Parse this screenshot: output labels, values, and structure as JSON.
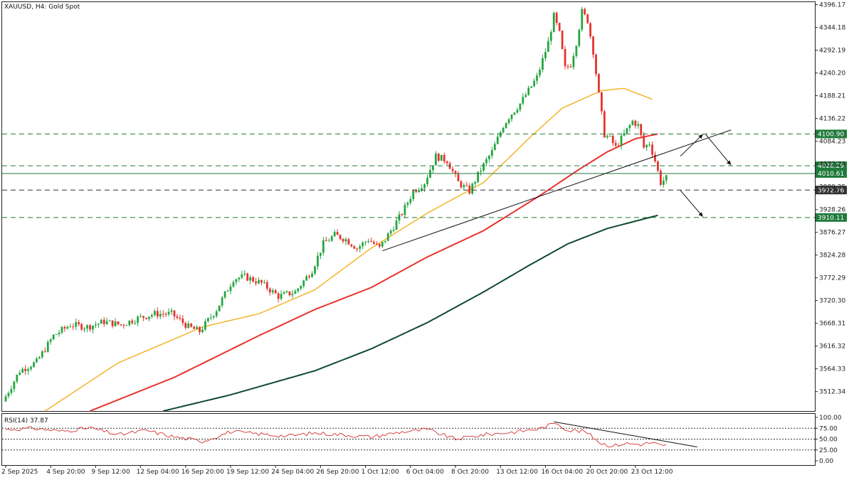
{
  "header": {
    "title": "XAUUSD, H4:  Gold Spot"
  },
  "price_axis": {
    "ticks": [
      "4396.17",
      "4344.18",
      "4292.19",
      "4240.20",
      "4188.21",
      "4136.22",
      "4084.23",
      "4032.24",
      "3980.25",
      "3928.26",
      "3876.27",
      "3824.28",
      "3772.29",
      "3720.30",
      "3668.31",
      "3616.32",
      "3564.33",
      "3512.34"
    ],
    "tick_values": [
      4396.17,
      4344.18,
      4292.19,
      4240.2,
      4188.21,
      4136.22,
      4084.23,
      4032.24,
      3980.25,
      3928.26,
      3876.27,
      3824.28,
      3772.29,
      3720.3,
      3668.31,
      3616.32,
      3564.33,
      3512.34
    ],
    "range": [
      3468,
      4402
    ]
  },
  "price_levels": [
    {
      "label": "4100.90",
      "value": 4100.9,
      "style": "dashed",
      "color": "#1f7a3a"
    },
    {
      "label": "4028.29",
      "value": 4028.29,
      "style": "dashed",
      "color": "#1f7a3a"
    },
    {
      "label": "4010.61",
      "value": 4010.61,
      "style": "solid",
      "color": "#1f7a3a"
    },
    {
      "label": "3972.76",
      "value": 3972.76,
      "style": "dashed",
      "color": "#333333"
    },
    {
      "label": "3910.11",
      "value": 3910.11,
      "style": "dashed",
      "color": "#1f7a3a"
    }
  ],
  "time_axis": {
    "labels": [
      "2 Sep 2025",
      "4 Sep 20:00",
      "9 Sep 12:00",
      "12 Sep 04:00",
      "16 Sep 20:00",
      "19 Sep 12:00",
      "24 Sep 04:00",
      "26 Sep 20:00",
      "1 Oct 12:00",
      "6 Oct 04:00",
      "8 Oct 20:00",
      "13 Oct 12:00",
      "16 Oct 04:00",
      "20 Oct 20:00",
      "23 Oct 12:00"
    ],
    "positions": [
      0,
      16,
      32,
      48,
      64,
      80,
      96,
      112,
      128,
      144,
      160,
      176,
      192,
      208,
      224
    ]
  },
  "rsi": {
    "label": "RSI(14) 37.87",
    "levels": [
      "100.00",
      "75.00",
      "50.00",
      "25.00",
      "0.00"
    ],
    "level_values": [
      100,
      75,
      50,
      25,
      0
    ],
    "dotted_levels": [
      75,
      50,
      25
    ]
  },
  "colors": {
    "bull": "#26a641",
    "bear": "#e8322d",
    "ma_fast": "#f2b529",
    "ma_mid": "#e8322d",
    "ma_slow": "#0d4a2e",
    "rsi_line": "#d33030",
    "level_bg": "#1f7a3a",
    "level_dark": "#333333"
  },
  "chart_data": {
    "type": "candlestick",
    "symbol": "XAUUSD",
    "timeframe": "H4",
    "ylim": [
      3468,
      4402
    ],
    "bars": 236,
    "price_path": [
      [
        0,
        3490
      ],
      [
        6,
        3560
      ],
      [
        12,
        3580
      ],
      [
        18,
        3640
      ],
      [
        24,
        3665
      ],
      [
        30,
        3660
      ],
      [
        36,
        3672
      ],
      [
        42,
        3665
      ],
      [
        48,
        3680
      ],
      [
        54,
        3690
      ],
      [
        60,
        3690
      ],
      [
        66,
        3660
      ],
      [
        70,
        3650
      ],
      [
        76,
        3700
      ],
      [
        82,
        3770
      ],
      [
        86,
        3775
      ],
      [
        92,
        3760
      ],
      [
        98,
        3730
      ],
      [
        104,
        3740
      ],
      [
        110,
        3790
      ],
      [
        114,
        3850
      ],
      [
        118,
        3870
      ],
      [
        122,
        3860
      ],
      [
        126,
        3840
      ],
      [
        130,
        3860
      ],
      [
        134,
        3840
      ],
      [
        138,
        3880
      ],
      [
        142,
        3920
      ],
      [
        146,
        3970
      ],
      [
        150,
        3990
      ],
      [
        154,
        4050
      ],
      [
        158,
        4040
      ],
      [
        162,
        3990
      ],
      [
        166,
        3970
      ],
      [
        170,
        4020
      ],
      [
        174,
        4060
      ],
      [
        178,
        4120
      ],
      [
        180,
        4140
      ],
      [
        184,
        4170
      ],
      [
        188,
        4210
      ],
      [
        190,
        4230
      ],
      [
        194,
        4310
      ],
      [
        196,
        4370
      ],
      [
        198,
        4330
      ],
      [
        200,
        4250
      ],
      [
        202,
        4260
      ],
      [
        204,
        4310
      ],
      [
        206,
        4380
      ],
      [
        208,
        4360
      ],
      [
        210,
        4290
      ],
      [
        212,
        4190
      ],
      [
        214,
        4100
      ],
      [
        216,
        4090
      ],
      [
        218,
        4070
      ],
      [
        220,
        4090
      ],
      [
        222,
        4110
      ],
      [
        224,
        4130
      ],
      [
        226,
        4120
      ],
      [
        228,
        4070
      ],
      [
        230,
        4080
      ],
      [
        232,
        4040
      ],
      [
        234,
        3990
      ],
      [
        236,
        4000
      ]
    ],
    "moving_averages": [
      {
        "period_color": "#f2b529",
        "points": [
          [
            14,
            3468
          ],
          [
            40,
            3578
          ],
          [
            70,
            3660
          ],
          [
            90,
            3690
          ],
          [
            110,
            3745
          ],
          [
            130,
            3840
          ],
          [
            150,
            3920
          ],
          [
            170,
            3990
          ],
          [
            186,
            4090
          ],
          [
            198,
            4160
          ],
          [
            212,
            4200
          ],
          [
            220,
            4205
          ],
          [
            230,
            4180
          ]
        ]
      },
      {
        "period_color": "#e8322d",
        "points": [
          [
            30,
            3468
          ],
          [
            60,
            3545
          ],
          [
            90,
            3640
          ],
          [
            110,
            3700
          ],
          [
            130,
            3750
          ],
          [
            150,
            3820
          ],
          [
            170,
            3880
          ],
          [
            190,
            3960
          ],
          [
            204,
            4020
          ],
          [
            214,
            4060
          ],
          [
            224,
            4090
          ],
          [
            232,
            4101
          ]
        ]
      },
      {
        "period_color": "#0d4a2e",
        "points": [
          [
            56,
            3468
          ],
          [
            80,
            3505
          ],
          [
            110,
            3560
          ],
          [
            130,
            3610
          ],
          [
            150,
            3670
          ],
          [
            170,
            3740
          ],
          [
            186,
            3800
          ],
          [
            200,
            3850
          ],
          [
            214,
            3885
          ],
          [
            226,
            3905
          ],
          [
            232,
            3915
          ]
        ]
      }
    ],
    "trendlines": [
      {
        "from": [
          134,
          3834
        ],
        "to": [
          258,
          4110
        ]
      }
    ],
    "rsi_values": [
      [
        0,
        72
      ],
      [
        10,
        75
      ],
      [
        20,
        68
      ],
      [
        30,
        76
      ],
      [
        40,
        60
      ],
      [
        50,
        70
      ],
      [
        60,
        55
      ],
      [
        70,
        45
      ],
      [
        80,
        67
      ],
      [
        90,
        62
      ],
      [
        100,
        57
      ],
      [
        110,
        64
      ],
      [
        120,
        60
      ],
      [
        130,
        55
      ],
      [
        140,
        66
      ],
      [
        150,
        72
      ],
      [
        160,
        50
      ],
      [
        170,
        60
      ],
      [
        180,
        66
      ],
      [
        190,
        74
      ],
      [
        196,
        88
      ],
      [
        200,
        70
      ],
      [
        206,
        68
      ],
      [
        212,
        40
      ],
      [
        216,
        34
      ],
      [
        220,
        40
      ],
      [
        226,
        38
      ],
      [
        230,
        42
      ],
      [
        234,
        33
      ],
      [
        236,
        37.87
      ]
    ],
    "rsi_trendline": {
      "from": [
        195,
        90
      ],
      "to": [
        246,
        32
      ]
    }
  }
}
